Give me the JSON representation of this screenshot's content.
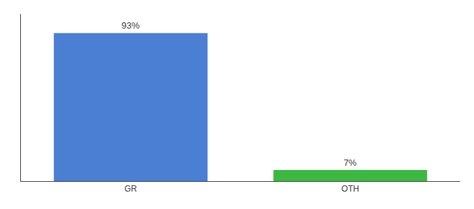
{
  "chart_data": {
    "type": "bar",
    "categories": [
      "GR",
      "OTH"
    ],
    "values": [
      93,
      7
    ],
    "value_labels": [
      "93%",
      "7%"
    ],
    "colors": [
      "#4a7fd4",
      "#3cb840"
    ],
    "ylim": [
      0,
      105
    ],
    "yticks": [],
    "grid": false,
    "data_labels": true,
    "tick_labels": "x"
  }
}
